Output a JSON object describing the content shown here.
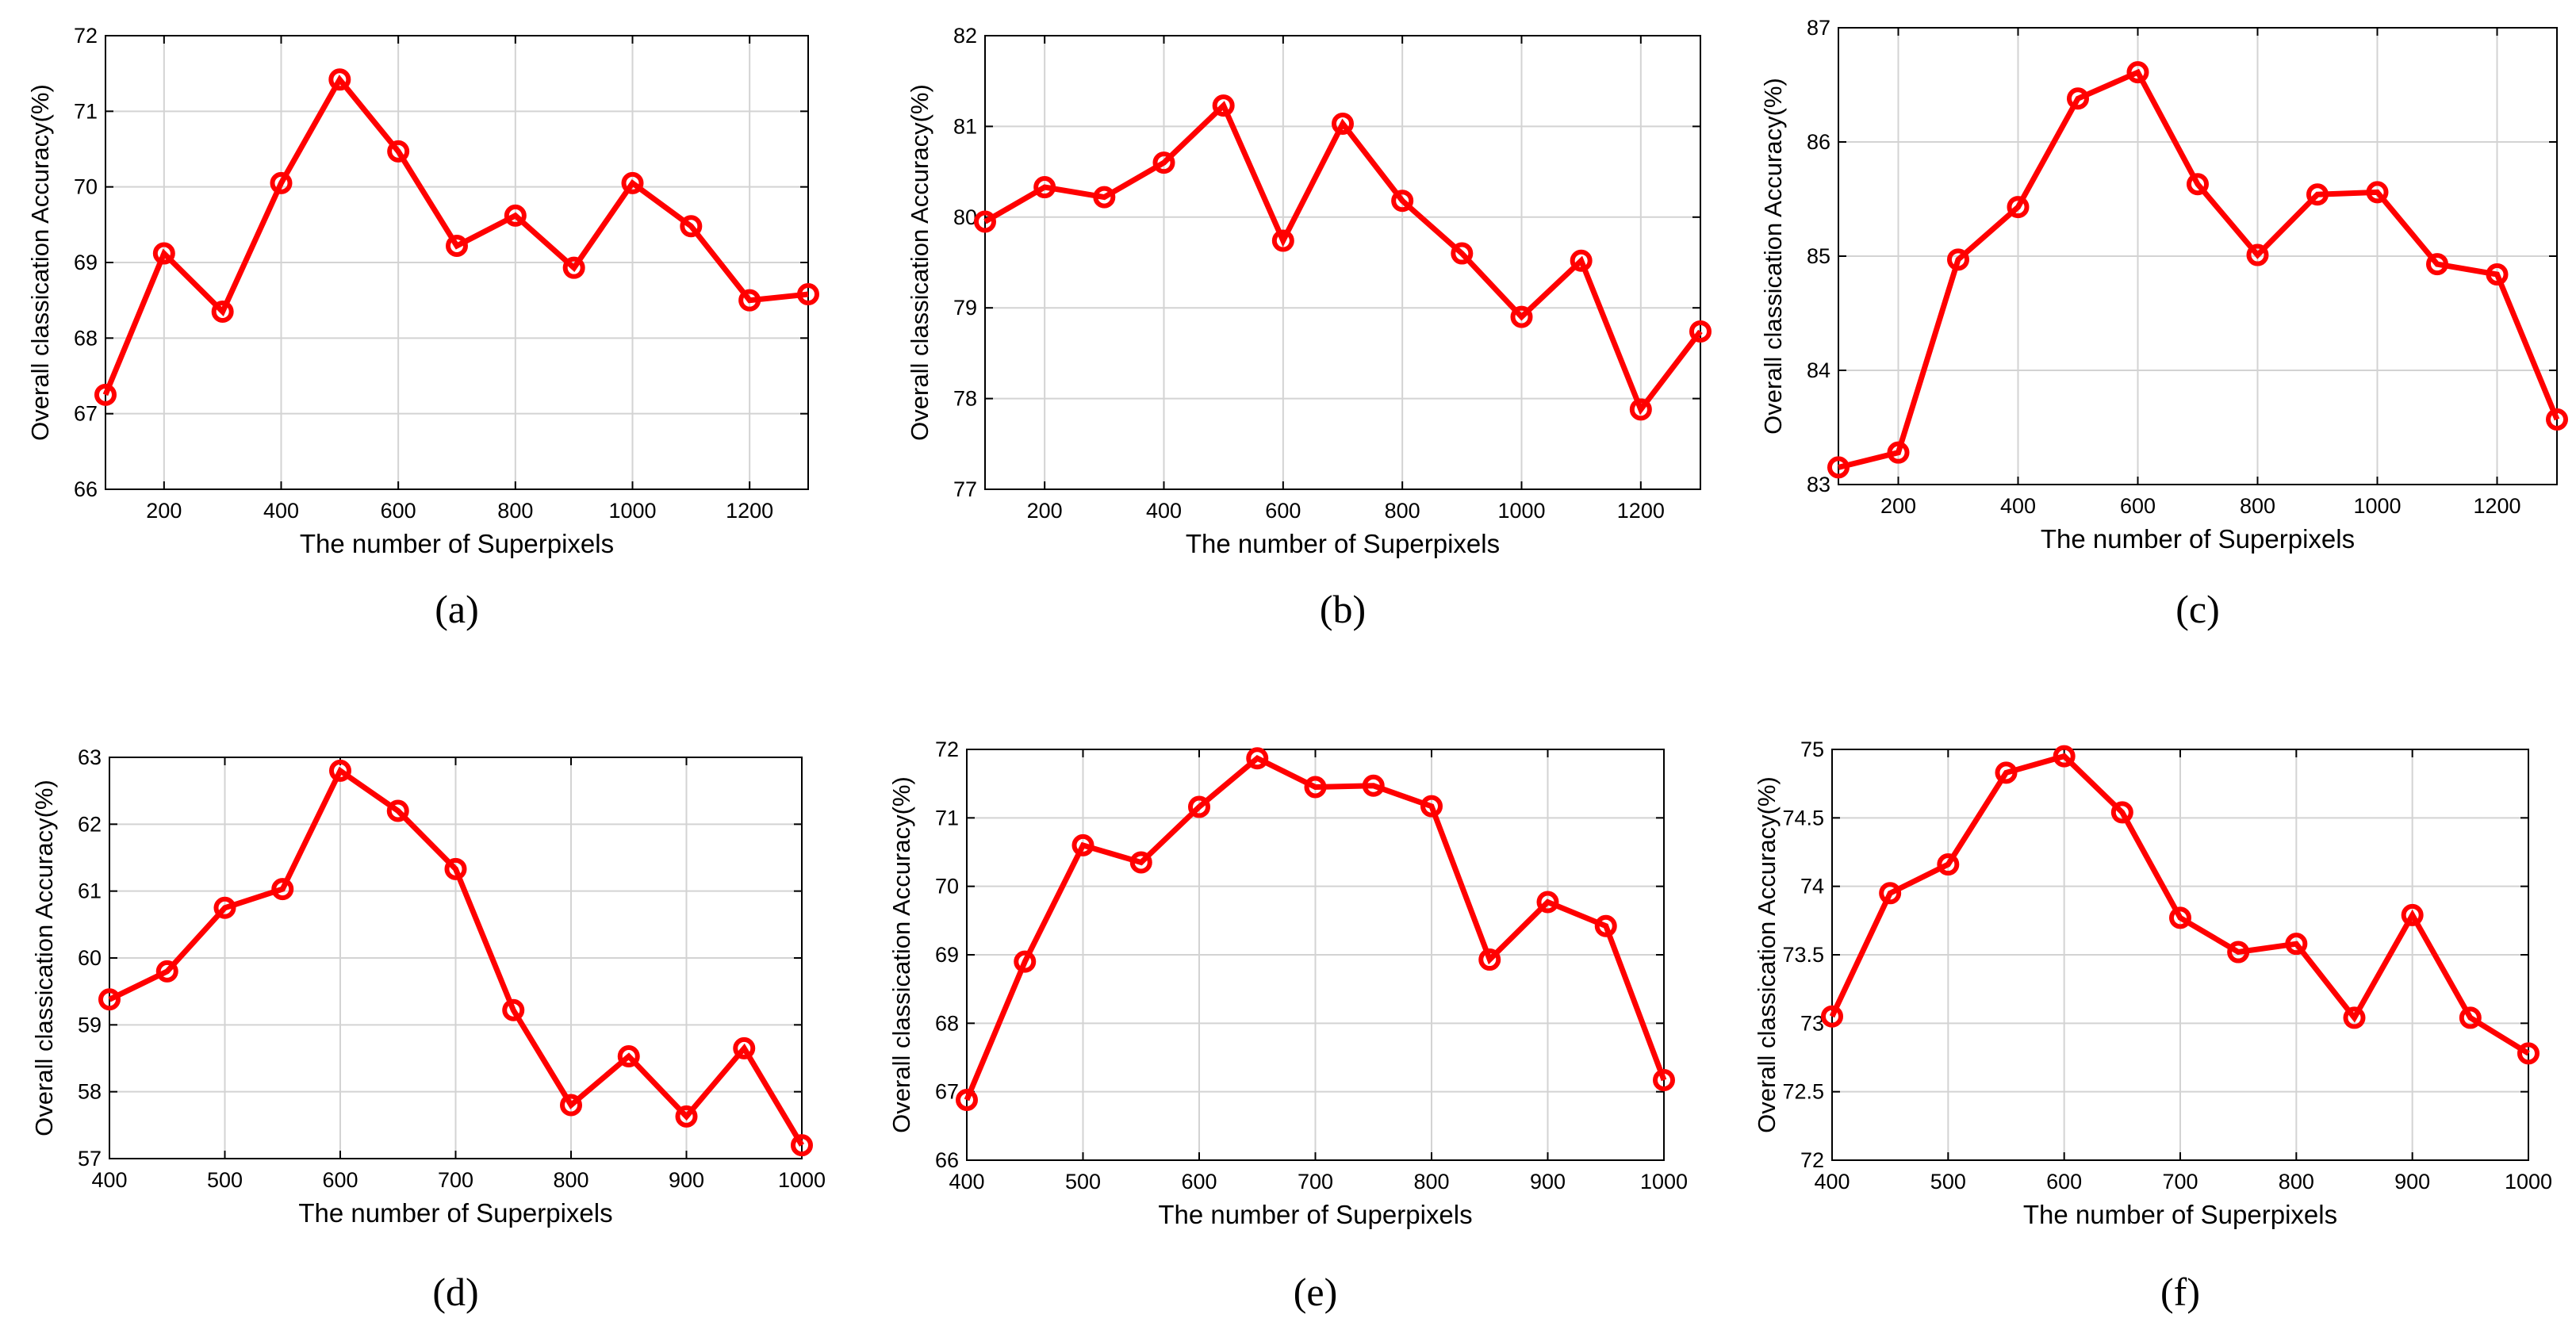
{
  "colors": {
    "series": "#ff0000",
    "grid": "#d3d3d3",
    "axis": "#000000"
  },
  "chart_data": [
    {
      "type": "line",
      "caption": "(a)",
      "xlabel": "The number of Superpixels",
      "ylabel": "Overall classication Accuracy(%)",
      "xlim": [
        100,
        1300
      ],
      "ylim": [
        66,
        72
      ],
      "xticks": [
        200,
        400,
        600,
        800,
        1000,
        1200
      ],
      "yticks": [
        66,
        67,
        68,
        69,
        70,
        71,
        72
      ],
      "grid": true,
      "x": [
        100,
        200,
        300,
        400,
        500,
        600,
        700,
        800,
        900,
        1000,
        1100,
        1200,
        1300
      ],
      "y": [
        67.25,
        69.12,
        68.35,
        70.05,
        71.42,
        70.47,
        69.22,
        69.62,
        68.93,
        70.05,
        69.48,
        68.5,
        68.58
      ]
    },
    {
      "type": "line",
      "caption": "(b)",
      "xlabel": "The number of Superpixels",
      "ylabel": "Overall classication Accuracy(%)",
      "xlim": [
        100,
        1300
      ],
      "ylim": [
        77,
        82
      ],
      "xticks": [
        200,
        400,
        600,
        800,
        1000,
        1200
      ],
      "yticks": [
        77,
        78,
        79,
        80,
        81,
        82
      ],
      "grid": true,
      "x": [
        100,
        200,
        300,
        400,
        500,
        600,
        700,
        800,
        900,
        1000,
        1100,
        1200,
        1300
      ],
      "y": [
        79.95,
        80.33,
        80.22,
        80.6,
        81.23,
        79.74,
        81.03,
        80.18,
        79.6,
        78.9,
        79.52,
        77.88,
        78.74
      ]
    },
    {
      "type": "line",
      "caption": "(c)",
      "xlabel": "The number of Superpixels",
      "ylabel": "Overall classication Accuracy(%)",
      "xlim": [
        100,
        1300
      ],
      "ylim": [
        83,
        87
      ],
      "xticks": [
        200,
        400,
        600,
        800,
        1000,
        1200
      ],
      "yticks": [
        83,
        84,
        85,
        86,
        87
      ],
      "grid": true,
      "x": [
        100,
        200,
        300,
        400,
        500,
        600,
        700,
        800,
        900,
        1000,
        1100,
        1200,
        1300
      ],
      "y": [
        83.15,
        83.28,
        84.97,
        85.43,
        86.38,
        86.61,
        85.63,
        85.01,
        85.54,
        85.56,
        84.93,
        84.84,
        83.57
      ]
    },
    {
      "type": "line",
      "caption": "(d)",
      "xlabel": "The number of Superpixels",
      "ylabel": "Overall classication Accuracy(%)",
      "xlim": [
        400,
        1000
      ],
      "ylim": [
        57,
        63
      ],
      "xticks": [
        400,
        500,
        600,
        700,
        800,
        900,
        1000
      ],
      "yticks": [
        57,
        58,
        59,
        60,
        61,
        62,
        63
      ],
      "grid": true,
      "x": [
        400,
        450,
        500,
        550,
        600,
        650,
        700,
        750,
        800,
        850,
        900,
        950,
        1000
      ],
      "y": [
        59.38,
        59.8,
        60.75,
        61.03,
        62.8,
        62.2,
        61.33,
        59.22,
        57.8,
        58.53,
        57.63,
        58.65,
        57.2
      ]
    },
    {
      "type": "line",
      "caption": "(e)",
      "xlabel": "The number of Superpixels",
      "ylabel": "Overall classication Accuracy(%)",
      "xlim": [
        400,
        1000
      ],
      "ylim": [
        66,
        72
      ],
      "xticks": [
        400,
        500,
        600,
        700,
        800,
        900,
        1000
      ],
      "yticks": [
        66,
        67,
        68,
        69,
        70,
        71,
        72
      ],
      "grid": true,
      "x": [
        400,
        450,
        500,
        550,
        600,
        650,
        700,
        750,
        800,
        850,
        900,
        950,
        1000
      ],
      "y": [
        66.88,
        68.9,
        70.6,
        70.35,
        71.16,
        71.87,
        71.45,
        71.47,
        71.17,
        68.93,
        69.77,
        69.42,
        67.17
      ]
    },
    {
      "type": "line",
      "caption": "(f)",
      "xlabel": "The number of Superpixels",
      "ylabel": "Overall classication Accuracy(%)",
      "xlim": [
        400,
        1000
      ],
      "ylim": [
        72,
        75
      ],
      "xticks": [
        400,
        500,
        600,
        700,
        800,
        900,
        1000
      ],
      "yticks": [
        72,
        72.5,
        73,
        73.5,
        74,
        74.5,
        75
      ],
      "grid": true,
      "x": [
        400,
        450,
        500,
        550,
        600,
        650,
        700,
        750,
        800,
        850,
        900,
        950,
        1000
      ],
      "y": [
        73.05,
        73.95,
        74.16,
        74.83,
        74.95,
        74.54,
        73.77,
        73.52,
        73.58,
        73.04,
        73.79,
        73.04,
        72.78
      ]
    }
  ]
}
